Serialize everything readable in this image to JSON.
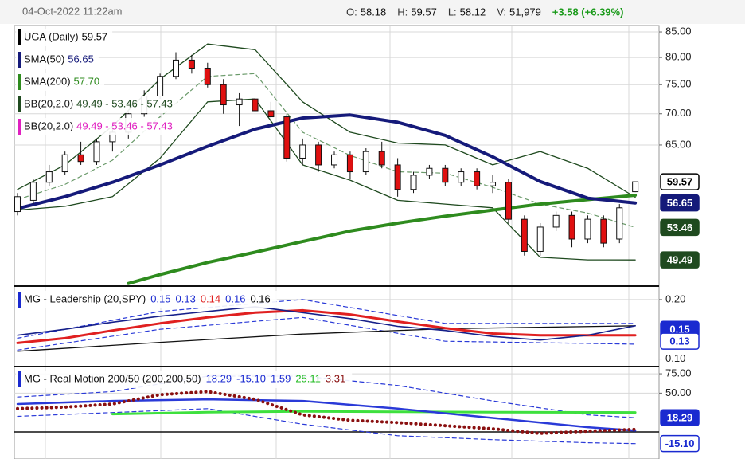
{
  "header": {
    "date": "04-Oct-2022 11:22am",
    "quote": [
      {
        "label": "O:",
        "value": 58.18
      },
      {
        "label": "H:",
        "value": 59.57
      },
      {
        "label": "L:",
        "value": 58.12
      },
      {
        "label": "V:",
        "value": 51979,
        "value_label": "51,979"
      }
    ],
    "change": "+3.58 (+6.39%)"
  },
  "chart_data": [
    {
      "type": "candlestick",
      "log": true,
      "grid": true,
      "xlim": [
        -0.2,
        40.5
      ],
      "ylim": [
        46.6,
        86.3
      ],
      "yticks": [
        {
          "value": 85,
          "label": "85.00"
        },
        {
          "value": 80,
          "label": "80.00"
        },
        {
          "value": 75,
          "label": "75.00"
        },
        {
          "value": 70,
          "label": "70.00"
        },
        {
          "value": 65,
          "label": "65.00"
        }
      ],
      "up_color": "#ffffff",
      "down_color": "#e01010",
      "candles": {
        "x": [
          0,
          1,
          2,
          3,
          4,
          5,
          6,
          7,
          8,
          9,
          10,
          11,
          12,
          13,
          14,
          15,
          16,
          17,
          18,
          19,
          20,
          21,
          22,
          23,
          24,
          25,
          26,
          27,
          28,
          29,
          30,
          31,
          32,
          33,
          34,
          35,
          36,
          37,
          38,
          39
        ],
        "open": [
          55.5,
          57,
          59.5,
          61,
          63.5,
          62.5,
          65.5,
          67,
          70,
          73,
          76.5,
          79.5,
          78,
          75,
          71.5,
          72.5,
          70.5,
          69.5,
          63,
          65,
          62,
          63.5,
          61,
          64,
          62,
          58.5,
          60.5,
          61.5,
          59.5,
          61,
          59,
          59.5,
          54.5,
          50.5,
          53.5,
          55,
          52,
          54.5,
          52,
          58.18
        ],
        "high": [
          58,
          60,
          62,
          64,
          65.5,
          66,
          68,
          70.5,
          74,
          77,
          81,
          80.5,
          79,
          76,
          73.5,
          73,
          72,
          70,
          66,
          65.5,
          64,
          64,
          64.5,
          65.5,
          63,
          61,
          62,
          62,
          61.5,
          61.5,
          60.5,
          60,
          55,
          54,
          55.5,
          55.5,
          55,
          55,
          56.5,
          59.57
        ],
        "low": [
          55,
          56.5,
          59,
          60.5,
          62,
          62,
          64,
          66,
          69.5,
          72.5,
          76,
          77,
          74.5,
          70,
          68,
          70,
          68.5,
          62.5,
          62,
          61,
          61.5,
          60,
          60.5,
          61.5,
          57.5,
          58,
          60,
          59,
          59,
          58.5,
          58,
          54,
          50,
          50,
          53,
          51,
          51.5,
          51,
          51.5,
          58.12
        ],
        "close": [
          57.5,
          59.5,
          61,
          63.5,
          62.5,
          65.5,
          67,
          70,
          73,
          76.5,
          79.5,
          78,
          75,
          71.5,
          72.5,
          70.5,
          69.5,
          63,
          65,
          62,
          63.5,
          61,
          64,
          62,
          58.5,
          60.5,
          61.5,
          59.5,
          61,
          59,
          59.5,
          54.5,
          50.5,
          53.5,
          55,
          52,
          54.5,
          51.5,
          56,
          59.57
        ]
      },
      "series": [
        {
          "color": "#6a9a6a",
          "dash": "dashed",
          "width": 1.2,
          "x": [
            0,
            3,
            6,
            9,
            12,
            15,
            18,
            21,
            24,
            27,
            30,
            33,
            36,
            39
          ],
          "values": [
            57.1,
            59.2,
            62.7,
            69.5,
            76.5,
            77,
            67,
            63.4,
            61,
            60.8,
            58.8,
            56.5,
            55.3,
            53.46
          ]
        },
        {
          "color": "#1f4a1f",
          "width": 1.3,
          "x": [
            0,
            3,
            6,
            9,
            12,
            15,
            18,
            21,
            24,
            27,
            30,
            33,
            36,
            39
          ],
          "values": [
            58.5,
            62,
            68,
            76,
            82.6,
            81.5,
            72,
            67,
            65.3,
            65,
            62,
            64,
            61.5,
            57.43
          ]
        },
        {
          "color": "#1f4a1f",
          "width": 1.3,
          "x": [
            0,
            3,
            6,
            9,
            12,
            15,
            18,
            21,
            24,
            27,
            30,
            33,
            36,
            39
          ],
          "values": [
            55.7,
            56.2,
            57.5,
            63,
            72,
            72.5,
            62,
            59.8,
            57,
            56.5,
            56,
            49.8,
            49.5,
            49.49
          ]
        },
        {
          "color": "#2e8b1e",
          "width": 4,
          "x": [
            7,
            9,
            12,
            15,
            18,
            21,
            24,
            27,
            30,
            33,
            36,
            39
          ],
          "values": [
            46.8,
            47.8,
            49.2,
            50.4,
            51.7,
            53,
            54,
            54.9,
            55.7,
            56.5,
            57.1,
            57.7
          ]
        },
        {
          "color": "#151a7a",
          "width": 4,
          "x": [
            0,
            3,
            6,
            9,
            12,
            15,
            18,
            21,
            24,
            27,
            30,
            33,
            36,
            39
          ],
          "values": [
            55.9,
            57.5,
            59.5,
            62,
            64.8,
            67.5,
            69.3,
            69.8,
            68.6,
            66.5,
            63.2,
            59.6,
            57.3,
            56.65
          ]
        }
      ],
      "legend": [
        {
          "name": "UGA (Daily)",
          "value": "59.57",
          "color": "#000000"
        },
        {
          "name": "SMA(50)",
          "value": "56.65",
          "color": "#151a7a"
        },
        {
          "name": "SMA(200)",
          "value": "57.70",
          "color": "#2e8b1e"
        },
        {
          "name": "BB(20,2.0)",
          "value": "49.49 - 53.46 - 57.43",
          "color": "#1f4a1f"
        },
        {
          "name": "BB(20,2.0)",
          "value": "49.49 - 53.46 - 57.43",
          "color": "#e020c0"
        }
      ],
      "badges": [
        {
          "value": 59.57,
          "fill": "#ffffff",
          "text_color": "#000000"
        },
        {
          "value": 56.65,
          "fill": "#151a7a",
          "text_color": "#ffffff"
        },
        {
          "value": 53.46,
          "fill": "#1f4a1f",
          "text_color": "#ffffff"
        },
        {
          "value": 49.49,
          "fill": "#1f4a1f",
          "text_color": "#ffffff"
        }
      ]
    },
    {
      "type": "line",
      "grid": true,
      "xlim": [
        -0.2,
        40.5
      ],
      "ylim": [
        0.09,
        0.22
      ],
      "yticks": [
        {
          "value": 0.2,
          "label": "0.20"
        },
        {
          "value": 0.1,
          "label": "0.10"
        }
      ],
      "series": [
        {
          "color": "#2a3ad8",
          "dash": "dashed",
          "width": 1.2,
          "x": [
            0,
            9,
            18,
            27,
            39
          ],
          "values": [
            0.135,
            0.18,
            0.2,
            0.16,
            0.16
          ]
        },
        {
          "color": "#2a3ad8",
          "dash": "dashed",
          "width": 1.2,
          "x": [
            0,
            9,
            18,
            27,
            39
          ],
          "values": [
            0.115,
            0.15,
            0.17,
            0.13,
            0.125
          ]
        },
        {
          "color": "#111111",
          "width": 1.3,
          "x": [
            0,
            9,
            18,
            27,
            39
          ],
          "values": [
            0.113,
            0.128,
            0.142,
            0.151,
            0.156
          ]
        },
        {
          "color": "#e02020",
          "width": 3,
          "x": [
            0,
            3,
            6,
            9,
            12,
            15,
            18,
            21,
            24,
            27,
            30,
            33,
            36,
            39
          ],
          "values": [
            0.127,
            0.135,
            0.148,
            0.16,
            0.17,
            0.178,
            0.182,
            0.175,
            0.163,
            0.152,
            0.143,
            0.14,
            0.14,
            0.14
          ]
        },
        {
          "color": "#16208a",
          "width": 1.6,
          "x": [
            0,
            3,
            6,
            9,
            12,
            15,
            18,
            21,
            24,
            27,
            30,
            33,
            36,
            39
          ],
          "values": [
            0.14,
            0.15,
            0.162,
            0.172,
            0.18,
            0.188,
            0.178,
            0.168,
            0.155,
            0.148,
            0.138,
            0.132,
            0.14,
            0.156
          ]
        }
      ],
      "legend": {
        "name": "MG - Leadership (20,SPY)",
        "values": [
          {
            "text": "0.15",
            "color": "#1a2ad0"
          },
          {
            "text": "0.13",
            "color": "#1a2ad0"
          },
          {
            "text": "0.14",
            "color": "#e02020"
          },
          {
            "text": "0.16",
            "color": "#1a2ad0"
          },
          {
            "text": "0.16",
            "color": "#000000"
          }
        ],
        "color": "#1a2ad0"
      },
      "badges": [
        {
          "value": 0.15,
          "fill": "#1a2ad0",
          "text_color": "#ffffff"
        },
        {
          "value": 0.13,
          "fill": "#ffffff",
          "text_color": "#1a2ad0"
        }
      ]
    },
    {
      "type": "line",
      "grid": true,
      "zero_line": true,
      "xlim": [
        -0.2,
        40.5
      ],
      "ylim": [
        -35,
        83.3
      ],
      "yticks": [
        {
          "value": 75,
          "label": "75.00"
        },
        {
          "value": 50,
          "label": "50.00"
        }
      ],
      "series": [
        {
          "color": "#2a3ad8",
          "dash": "dashed",
          "width": 1.2,
          "x": [
            0,
            6,
            12,
            18,
            24,
            30,
            36,
            39
          ],
          "values": [
            45,
            52,
            72,
            72,
            60,
            40,
            22,
            18.29
          ]
        },
        {
          "color": "#2a3ad8",
          "dash": "dashed",
          "width": 1.2,
          "x": [
            0,
            6,
            12,
            18,
            24,
            30,
            36,
            39
          ],
          "values": [
            20,
            25,
            30,
            10,
            -5,
            -10,
            -14,
            -15.1
          ]
        },
        {
          "color": "#3ee03e",
          "width": 3,
          "x": [
            6,
            12,
            18,
            24,
            30,
            36,
            39
          ],
          "values": [
            23,
            25.5,
            26.5,
            26,
            25.5,
            25.2,
            25.11
          ]
        },
        {
          "color": "#2a3ad8",
          "width": 2.5,
          "x": [
            0,
            6,
            12,
            18,
            24,
            30,
            36,
            39
          ],
          "values": [
            36,
            40,
            42,
            40,
            30,
            18,
            6,
            1.59
          ]
        },
        {
          "color": "#8a1010",
          "dash": "dotted",
          "width": 4,
          "x": [
            0,
            3,
            6,
            9,
            12,
            15,
            18,
            21,
            24,
            27,
            30,
            33,
            36,
            39
          ],
          "values": [
            30,
            32,
            36,
            48,
            52,
            42,
            22,
            15,
            12,
            8,
            4,
            -2,
            1,
            3.31
          ]
        }
      ],
      "legend": {
        "name": "MG - Real Motion 200/50 (200,200,50)",
        "values": [
          {
            "text": "18.29",
            "color": "#1a2ad0"
          },
          {
            "text": "-15.10",
            "color": "#1a2ad0"
          },
          {
            "text": "1.59",
            "color": "#1a2ad0"
          },
          {
            "text": "25.11",
            "color": "#22bb22"
          },
          {
            "text": "3.31",
            "color": "#8a1010"
          }
        ],
        "color": "#1a2ad0"
      },
      "badges": [
        {
          "value": 18.29,
          "fill": "#1a2ad0",
          "text_color": "#ffffff"
        },
        {
          "value": -15.1,
          "label": "-15.10",
          "fill": "#ffffff",
          "text_color": "#1a2ad0"
        }
      ]
    }
  ]
}
